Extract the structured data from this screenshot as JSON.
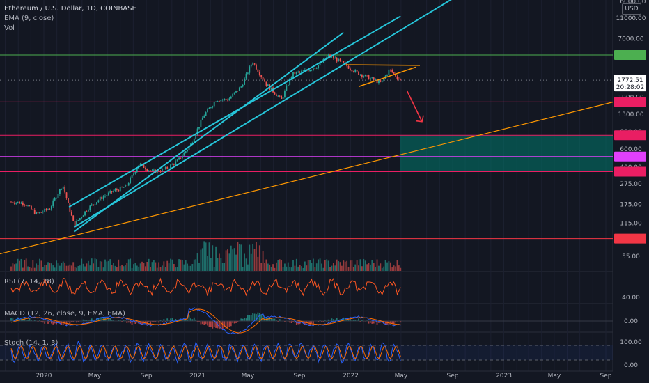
{
  "header": {
    "title": "Ethereum / U.S. Dollar, 1D, COINBASE",
    "ema_label": "EMA (9, close)",
    "vol_label": "Vol"
  },
  "currency_button": "USD",
  "colors": {
    "background": "#131722",
    "channel": "#26c6da",
    "trendline": "#ff9800",
    "triangle": "#ff9800",
    "resistance_green": "#4caf50",
    "level_pink": "#e91e63",
    "level_magenta": "#e040fb",
    "level_red": "#f23645",
    "target_zone": "#00796b",
    "arrow": "#f23645",
    "rsi_line": "#ff5722",
    "macd_line": "#2962ff",
    "signal_line": "#ff6d00",
    "stoch_k": "#2962ff",
    "stoch_d": "#ff6d00",
    "up_candle": "#26a69a",
    "down_candle": "#ef5350"
  },
  "chart_data": {
    "type": "candlestick",
    "title": "Ethereum / U.S. Dollar, 1D, COINBASE",
    "y_scale": "log",
    "y_ticks": [
      "16000.00",
      "11000.00",
      "7000.00",
      "1900.00",
      "1300.00",
      "880.00",
      "600.00",
      "400.00",
      "275.00",
      "175.00",
      "115.00",
      "55.00"
    ],
    "x_ticks": [
      "2020",
      "May",
      "Sep",
      "2021",
      "May",
      "Sep",
      "2022",
      "May",
      "Sep",
      "2023",
      "May",
      "Sep"
    ],
    "last_price": "2772.51",
    "countdown": "20:28:02",
    "levels": [
      {
        "value": "4850.51",
        "color": "#4caf50"
      },
      {
        "value": "1706.10",
        "color": "#e91e63"
      },
      {
        "value": "813.39",
        "color": "#e91e63"
      },
      {
        "value": "506.93",
        "color": "#e040fb"
      },
      {
        "value": "361.44",
        "color": "#e91e63"
      },
      {
        "value": "81.44",
        "color": "#f23645"
      }
    ],
    "price_path": {
      "dates": [
        "2019-10-15",
        "2019-11-15",
        "2019-12-15",
        "2020-01-15",
        "2020-02-15",
        "2020-03-13",
        "2020-04-15",
        "2020-05-15",
        "2020-06-15",
        "2020-07-15",
        "2020-08-15",
        "2020-09-15",
        "2020-10-15",
        "2020-11-15",
        "2020-12-15",
        "2021-01-15",
        "2021-02-15",
        "2021-03-15",
        "2021-04-15",
        "2021-05-12",
        "2021-06-15",
        "2021-07-20",
        "2021-08-15",
        "2021-09-15",
        "2021-10-15",
        "2021-11-10",
        "2021-12-15",
        "2022-01-15",
        "2022-02-15",
        "2022-03-15",
        "2022-04-03",
        "2022-04-30"
      ],
      "prices": [
        185,
        180,
        140,
        160,
        270,
        110,
        160,
        200,
        235,
        260,
        430,
        360,
        380,
        460,
        650,
        1250,
        1800,
        1800,
        2400,
        4200,
        2500,
        1800,
        3200,
        3400,
        3800,
        4800,
        4000,
        3300,
        2900,
        2600,
        3500,
        2772
      ]
    },
    "indicators": {
      "rsi": {
        "label": "RSI (7, 14, 28)",
        "y_ticks": [
          "40.00"
        ]
      },
      "macd": {
        "label": "MACD (12, 26, close, 9, EMA, EMA)",
        "y_ticks": [
          "0.00"
        ]
      },
      "stoch": {
        "label": "Stoch (14, 1, 3)",
        "y_ticks": [
          "100.00",
          "0.00"
        ]
      }
    }
  }
}
